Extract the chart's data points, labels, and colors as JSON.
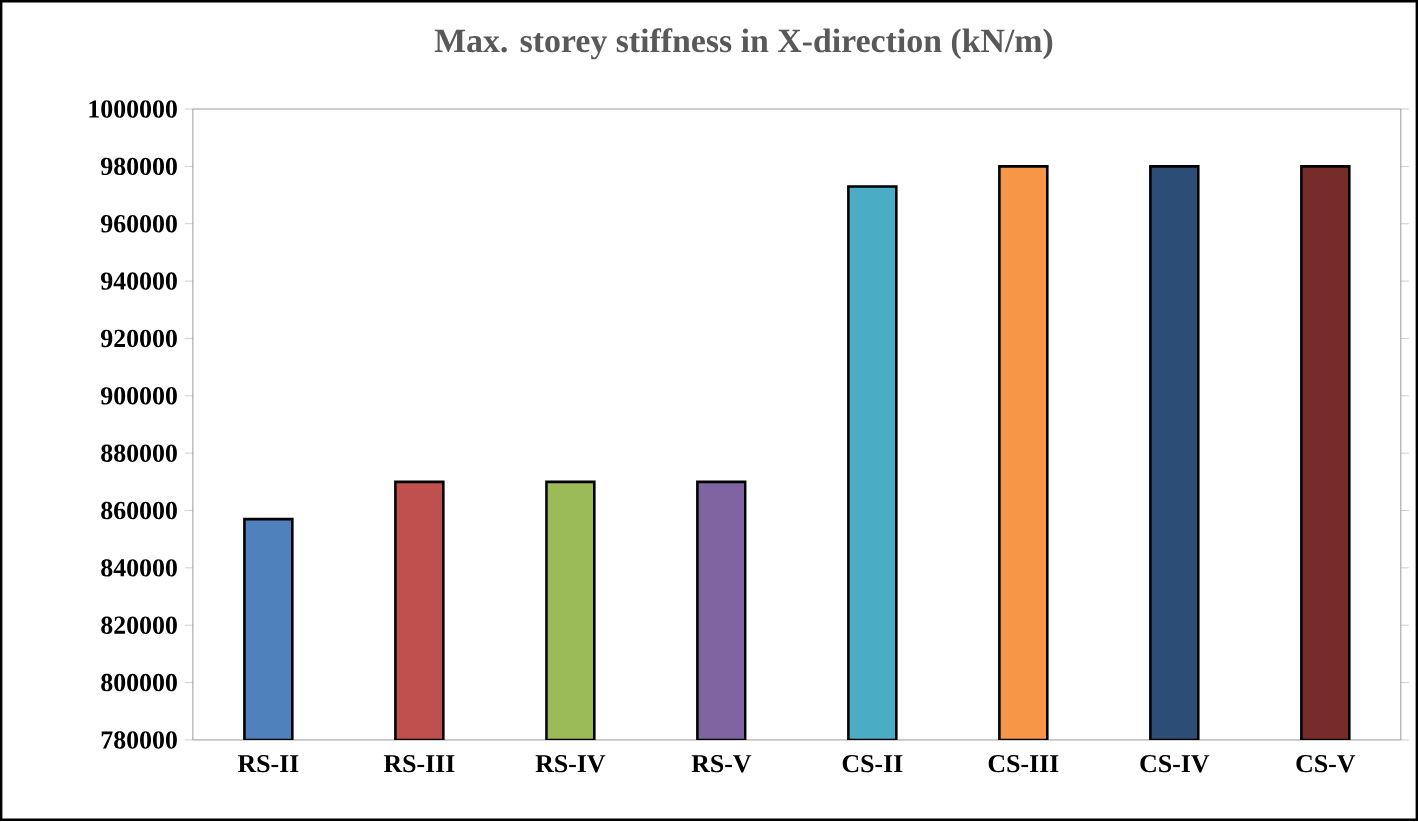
{
  "chart_data": {
    "type": "bar",
    "title": "Max. storey stiffness in X-direction (kN/m)",
    "categories": [
      "RS-II",
      "RS-III",
      "RS-IV",
      "RS-V",
      "CS-II",
      "CS-III",
      "CS-IV",
      "CS-V"
    ],
    "values": [
      857000,
      870000,
      870000,
      870000,
      973000,
      980000,
      980000,
      980000
    ],
    "colors": [
      "#4f81bd",
      "#c0504d",
      "#9bbb59",
      "#8064a2",
      "#4bacc6",
      "#f79646",
      "#2c4d75",
      "#772c2a"
    ],
    "ylim": [
      780000,
      1000000
    ],
    "yticks": [
      780000,
      800000,
      820000,
      840000,
      860000,
      880000,
      900000,
      920000,
      940000,
      960000,
      980000,
      1000000
    ],
    "grid": false
  }
}
